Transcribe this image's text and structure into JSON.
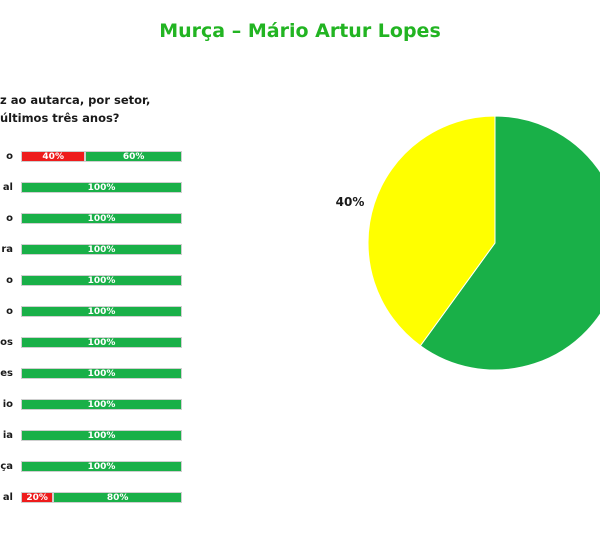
{
  "title": "Murça – Mário Artur Lopes",
  "question": {
    "line1": "z ao autarca, por setor,",
    "line2": "últimos três anos?"
  },
  "colors": {
    "title": "#22b422",
    "negative": "#ee1c1c",
    "positive": "#19b048",
    "pie_yellow": "#ffff00",
    "pie_green": "#19b048"
  },
  "chart_data": [
    {
      "type": "bar",
      "orientation": "horizontal-stacked",
      "categories": [
        "o",
        "al",
        "o",
        "ra",
        "o",
        "o",
        "os",
        "es",
        "io",
        "ia",
        "ça",
        "al"
      ],
      "series": [
        {
          "values": [
            40,
            0,
            0,
            0,
            0,
            0,
            0,
            0,
            0,
            0,
            0,
            20
          ],
          "color": "#ee1c1c"
        },
        {
          "values": [
            60,
            100,
            100,
            100,
            100,
            100,
            100,
            100,
            100,
            100,
            100,
            80
          ],
          "color": "#19b048"
        }
      ],
      "value_labels": [
        [
          "40%",
          "60%"
        ],
        [
          "",
          "100%"
        ],
        [
          "",
          "100%"
        ],
        [
          "",
          "100%"
        ],
        [
          "",
          "100%"
        ],
        [
          "",
          "100%"
        ],
        [
          "",
          "100%"
        ],
        [
          "",
          "100%"
        ],
        [
          "",
          "100%"
        ],
        [
          "",
          "100%"
        ],
        [
          "",
          "100%"
        ],
        [
          "20%",
          "80%"
        ]
      ],
      "xlim": [
        0,
        100
      ]
    },
    {
      "type": "pie",
      "slices": [
        {
          "value": 40,
          "label": "40%",
          "color": "#ffff00"
        },
        {
          "value": 60,
          "label": "",
          "color": "#19b048"
        }
      ]
    }
  ]
}
